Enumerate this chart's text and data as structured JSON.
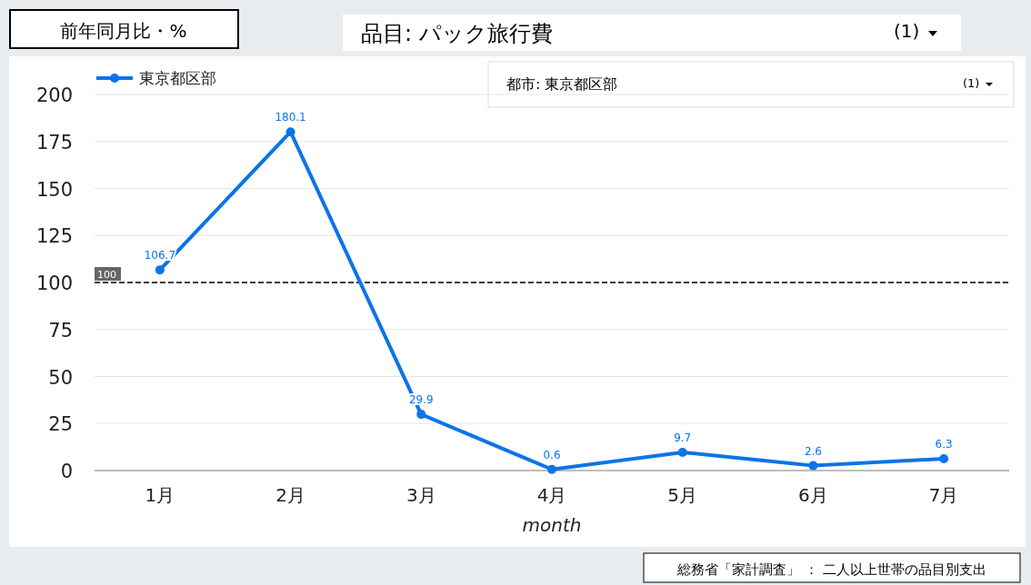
{
  "chart_data": {
    "type": "line",
    "title": "前年同月比・%",
    "xlabel": "month",
    "categories": [
      "1月",
      "2月",
      "3月",
      "4月",
      "5月",
      "6月",
      "7月"
    ],
    "series": [
      {
        "name": "東京都区部",
        "color": "#0b74e8",
        "values": [
          106.7,
          180.1,
          29.9,
          0.6,
          9.7,
          2.6,
          6.3
        ]
      }
    ],
    "ylim": [
      0,
      200
    ],
    "yticks": [
      0,
      25,
      50,
      75,
      100,
      125,
      150,
      175,
      200
    ],
    "grid": "y",
    "legend": "top left",
    "marker": "circle",
    "data_labels": true,
    "ref_lines": [
      {
        "axis": "y",
        "value": 100,
        "label": "100",
        "color": "#000000",
        "line_style": "dashed"
      }
    ],
    "annotations": [
      "品目: パック旅行費",
      "(1)",
      "都市: 東京都区部",
      "(1)",
      "総務省「家計調査」 ： 二人以上世帯の品目別支出"
    ]
  }
}
